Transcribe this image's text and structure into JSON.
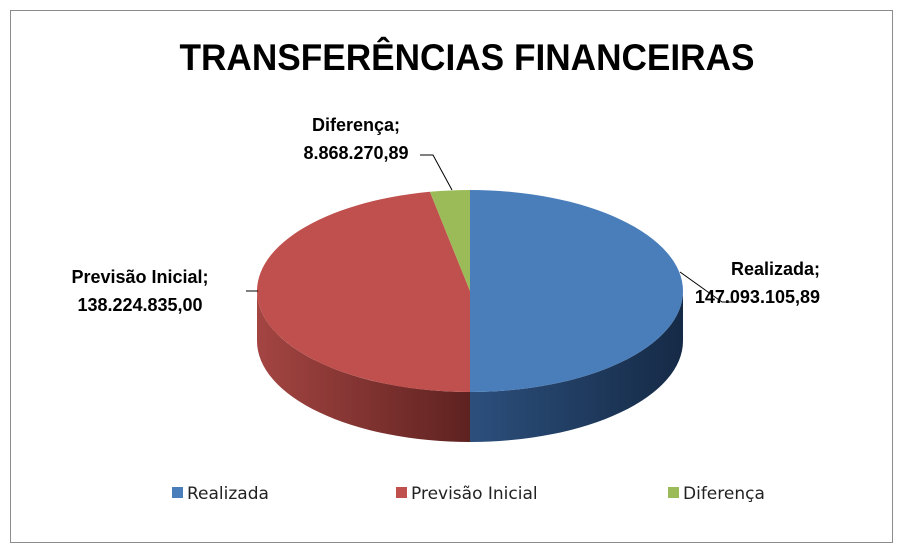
{
  "chart_data": {
    "type": "pie3d",
    "title": "TRANSFERÊNCIAS FINANCEIRAS",
    "categories": [
      "Realizada",
      "Previsão Inicial",
      "Diferença"
    ],
    "values": [
      147093105.89,
      138224835.0,
      8868270.89
    ],
    "value_labels": [
      "147.093.105,89",
      "138.224.835,00",
      "8.868.270,89"
    ],
    "label_separator": ";",
    "colors": [
      "#4a7ebb",
      "#c0504d",
      "#9bbb59"
    ],
    "legend": "bottom"
  }
}
